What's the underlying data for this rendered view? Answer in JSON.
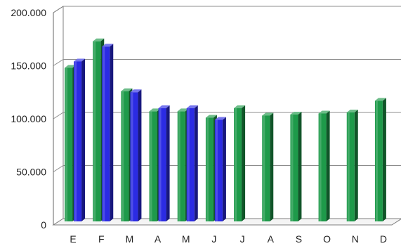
{
  "chart_data": {
    "type": "bar",
    "categories": [
      "E",
      "F",
      "M",
      "A",
      "M",
      "J",
      "J",
      "A",
      "S",
      "O",
      "N",
      "D"
    ],
    "series": [
      {
        "color": "#1e9a4a",
        "values": [
          148000,
          173000,
          126000,
          107000,
          107000,
          101000,
          110000,
          103000,
          104000,
          105000,
          106000,
          117000
        ]
      },
      {
        "color": "#2b2be3",
        "values": [
          154000,
          168000,
          125000,
          110000,
          110000,
          99000,
          null,
          null,
          null,
          null,
          null,
          null
        ]
      }
    ],
    "yticks": [
      "0",
      "50.000",
      "100.000",
      "150.000",
      "200.000"
    ],
    "ytick_values": [
      0,
      50000,
      100000,
      150000,
      200000
    ],
    "ylim": [
      0,
      200000
    ],
    "grid": true,
    "style": "3d-bar"
  }
}
